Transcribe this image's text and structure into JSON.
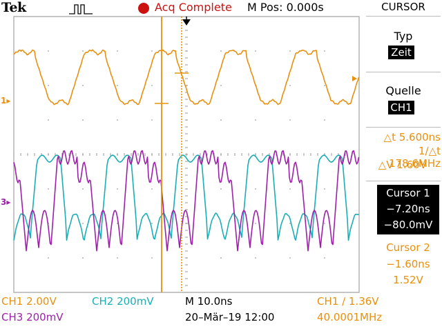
{
  "header": {
    "brand": "Tek",
    "acquisition_status": "Acq Complete",
    "horizontal_position": "M Pos: 0.000s"
  },
  "side_menu": {
    "title": "CURSOR",
    "type_label": "Typ",
    "type_value": "Zeit",
    "source_label": "Quelle",
    "source_value": "CH1",
    "delta_t": "5.600ns",
    "inverse_delta_t": "178.6MHz",
    "delta_v": "1.60V",
    "cursor1": {
      "label": "Cursor 1",
      "time": "−7.20ns",
      "value": "−80.0mV"
    },
    "cursor2": {
      "label": "Cursor 2",
      "time": "−1.60ns",
      "value": "1.52V"
    }
  },
  "status_bar": {
    "ch1_scale": "CH1  2.00V",
    "ch2_scale": "CH2  200mV",
    "ch3_scale": "CH3  200mV",
    "timebase": "M 10.0ns",
    "datetime": "20–Mär–19 12:00",
    "trigger": "CH1 ∕ 1.36V",
    "trigger_frequency": "40.0001MHz"
  },
  "channel_markers": {
    "ch1": "1",
    "ch3": "3"
  },
  "colors": {
    "ch1": "#e8900e",
    "ch2": "#1aaeb4",
    "ch3": "#9d1fa9",
    "acq": "#cc1111"
  }
}
